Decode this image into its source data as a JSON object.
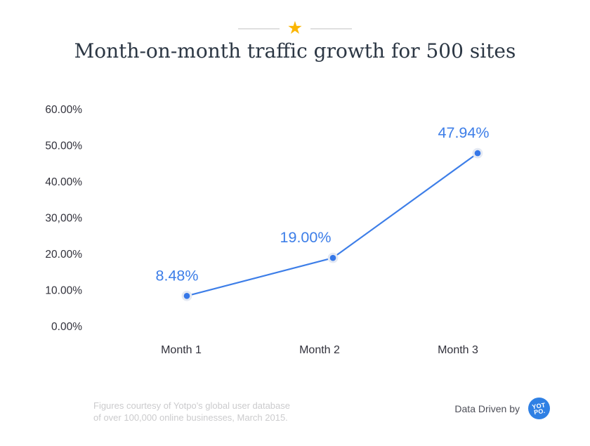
{
  "header": {
    "star_icon": "★",
    "title": "Month-on-month traffic growth for 500 sites"
  },
  "chart_data": {
    "type": "line",
    "title": "Month-on-month traffic growth for 500 sites",
    "categories": [
      "Month 1",
      "Month 2",
      "Month 3"
    ],
    "series": [
      {
        "name": "Month-on-month traffic growth",
        "values": [
          8.48,
          19.0,
          47.94
        ]
      }
    ],
    "point_labels": [
      "8.48%",
      "19.00%",
      "47.94%"
    ],
    "y_ticks": [
      {
        "value": 60,
        "label": "60.00%"
      },
      {
        "value": 50,
        "label": "50.00%"
      },
      {
        "value": 40,
        "label": "40.00%"
      },
      {
        "value": 30,
        "label": "30,00%"
      },
      {
        "value": 20,
        "label": "20.00%"
      },
      {
        "value": 10,
        "label": "10.00%"
      },
      {
        "value": 0,
        "label": "0.00%"
      }
    ],
    "ylim": [
      0,
      60
    ],
    "xlabel": "",
    "ylabel": "",
    "grid": false,
    "legend": false
  },
  "footer": {
    "attribution_line1": "Figures courtesy of Yotpo's global user database",
    "attribution_line2": "of over 100,000 online businesses, March 2015.",
    "data_driven_by": "Data Driven by",
    "logo_line1": "YOT",
    "logo_line2": "PO."
  },
  "colors": {
    "line": "#3d7ee8",
    "point": "#3577e8",
    "point_halo": "#e4e9f3",
    "data_label": "#3d7ee8",
    "axis_label": "#31313b",
    "title": "#2c3744",
    "star": "#fbb604",
    "divider_line": "#dfdfdf",
    "attribution": "#cbcbcd",
    "logo_bg": "#2f80e4"
  }
}
